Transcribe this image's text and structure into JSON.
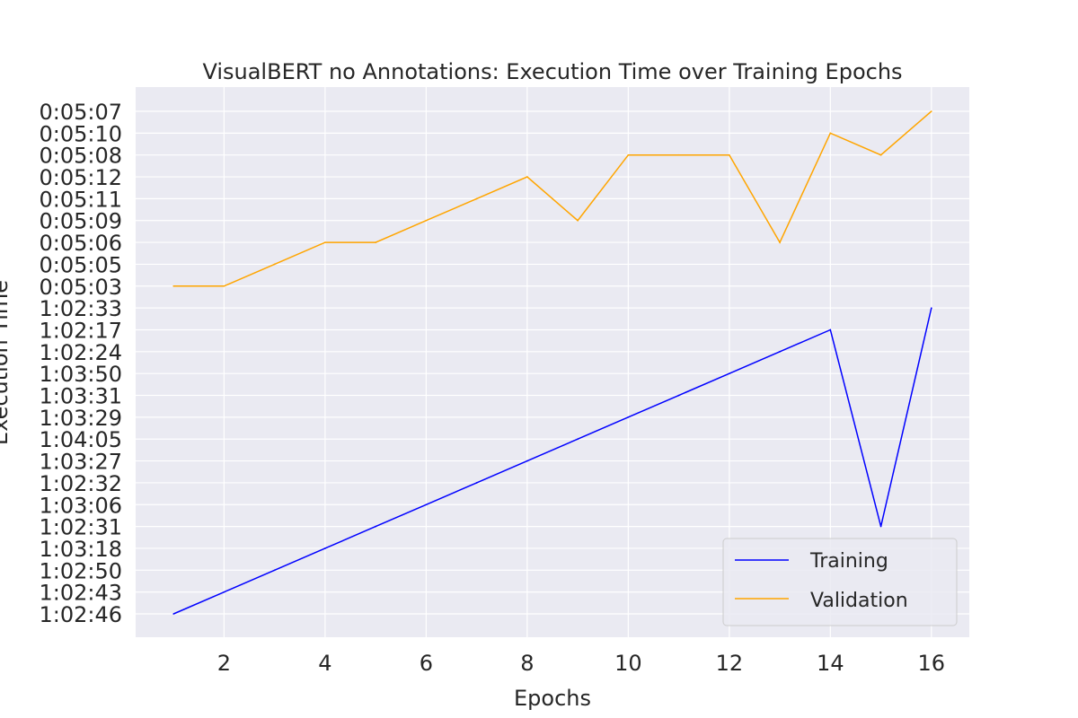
{
  "chart_data": {
    "type": "line",
    "title": "VisualBERT no Annotations: Execution Time over Training Epochs",
    "xlabel": "Epochs",
    "ylabel": "Execution Time",
    "x_ticks": [
      2,
      4,
      6,
      8,
      10,
      12,
      14,
      16
    ],
    "xlim": [
      0.25,
      16.75
    ],
    "y_categories": [
      "1:02:46",
      "1:02:43",
      "1:02:50",
      "1:03:18",
      "1:02:31",
      "1:03:06",
      "1:02:32",
      "1:03:27",
      "1:04:05",
      "1:03:29",
      "1:03:31",
      "1:03:50",
      "1:02:24",
      "1:02:17",
      "1:02:33",
      "0:05:03",
      "0:05:05",
      "0:05:06",
      "0:05:09",
      "0:05:11",
      "0:05:12",
      "0:05:08",
      "0:05:10",
      "0:05:07"
    ],
    "x": [
      1,
      2,
      3,
      4,
      5,
      6,
      7,
      8,
      9,
      10,
      11,
      12,
      13,
      14,
      15,
      16
    ],
    "series": [
      {
        "name": "Training",
        "color": "#0000ff",
        "values": [
          "1:02:46",
          "1:02:43",
          "1:02:50",
          "1:03:18",
          "1:02:31",
          "1:03:06",
          "1:02:32",
          "1:03:27",
          "1:04:05",
          "1:03:29",
          "1:03:31",
          "1:03:50",
          "1:02:24",
          "1:02:17",
          "1:02:31",
          "1:02:33"
        ]
      },
      {
        "name": "Validation",
        "color": "#ffa500",
        "values": [
          "0:05:03",
          "0:05:03",
          "0:05:05",
          "0:05:06",
          "0:05:06",
          "0:05:09",
          "0:05:11",
          "0:05:12",
          "0:05:09",
          "0:05:08",
          "0:05:08",
          "0:05:08",
          "0:05:06",
          "0:05:10",
          "0:05:08",
          "0:05:07"
        ]
      }
    ],
    "grid": true,
    "legend_position": "bottom-right",
    "background": "#eaeaf2"
  }
}
